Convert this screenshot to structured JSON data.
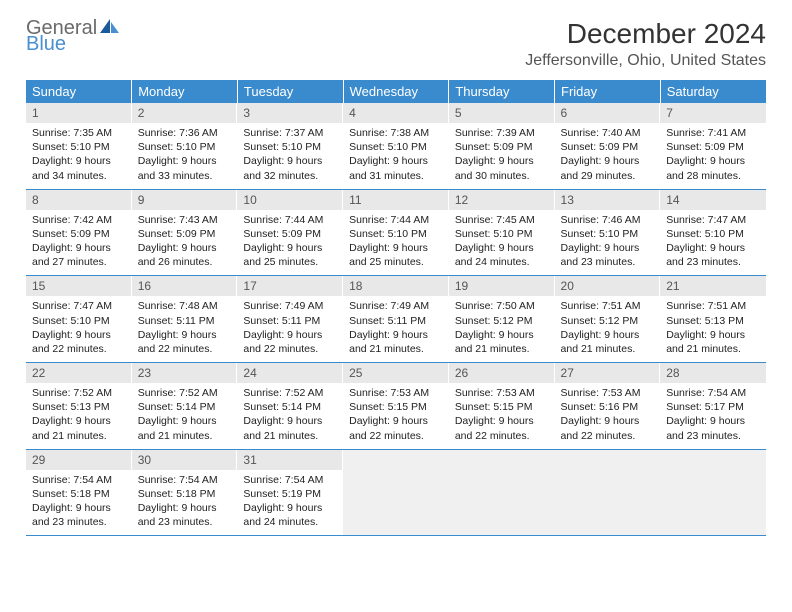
{
  "logo": {
    "general": "General",
    "blue": "Blue"
  },
  "title": "December 2024",
  "location": "Jeffersonville, Ohio, United States",
  "colors": {
    "header_bg": "#3a8bce",
    "header_text": "#ffffff",
    "daynum_bg": "#e8e8e8",
    "empty_bg": "#f0f0f0",
    "border": "#3a8bce",
    "logo_blue": "#4a8fd0",
    "logo_gray": "#6a6a6a"
  },
  "daysOfWeek": [
    "Sunday",
    "Monday",
    "Tuesday",
    "Wednesday",
    "Thursday",
    "Friday",
    "Saturday"
  ],
  "weeks": [
    [
      {
        "num": "1",
        "sunrise": "7:35 AM",
        "sunset": "5:10 PM",
        "daylight": "9 hours and 34 minutes."
      },
      {
        "num": "2",
        "sunrise": "7:36 AM",
        "sunset": "5:10 PM",
        "daylight": "9 hours and 33 minutes."
      },
      {
        "num": "3",
        "sunrise": "7:37 AM",
        "sunset": "5:10 PM",
        "daylight": "9 hours and 32 minutes."
      },
      {
        "num": "4",
        "sunrise": "7:38 AM",
        "sunset": "5:10 PM",
        "daylight": "9 hours and 31 minutes."
      },
      {
        "num": "5",
        "sunrise": "7:39 AM",
        "sunset": "5:09 PM",
        "daylight": "9 hours and 30 minutes."
      },
      {
        "num": "6",
        "sunrise": "7:40 AM",
        "sunset": "5:09 PM",
        "daylight": "9 hours and 29 minutes."
      },
      {
        "num": "7",
        "sunrise": "7:41 AM",
        "sunset": "5:09 PM",
        "daylight": "9 hours and 28 minutes."
      }
    ],
    [
      {
        "num": "8",
        "sunrise": "7:42 AM",
        "sunset": "5:09 PM",
        "daylight": "9 hours and 27 minutes."
      },
      {
        "num": "9",
        "sunrise": "7:43 AM",
        "sunset": "5:09 PM",
        "daylight": "9 hours and 26 minutes."
      },
      {
        "num": "10",
        "sunrise": "7:44 AM",
        "sunset": "5:09 PM",
        "daylight": "9 hours and 25 minutes."
      },
      {
        "num": "11",
        "sunrise": "7:44 AM",
        "sunset": "5:10 PM",
        "daylight": "9 hours and 25 minutes."
      },
      {
        "num": "12",
        "sunrise": "7:45 AM",
        "sunset": "5:10 PM",
        "daylight": "9 hours and 24 minutes."
      },
      {
        "num": "13",
        "sunrise": "7:46 AM",
        "sunset": "5:10 PM",
        "daylight": "9 hours and 23 minutes."
      },
      {
        "num": "14",
        "sunrise": "7:47 AM",
        "sunset": "5:10 PM",
        "daylight": "9 hours and 23 minutes."
      }
    ],
    [
      {
        "num": "15",
        "sunrise": "7:47 AM",
        "sunset": "5:10 PM",
        "daylight": "9 hours and 22 minutes."
      },
      {
        "num": "16",
        "sunrise": "7:48 AM",
        "sunset": "5:11 PM",
        "daylight": "9 hours and 22 minutes."
      },
      {
        "num": "17",
        "sunrise": "7:49 AM",
        "sunset": "5:11 PM",
        "daylight": "9 hours and 22 minutes."
      },
      {
        "num": "18",
        "sunrise": "7:49 AM",
        "sunset": "5:11 PM",
        "daylight": "9 hours and 21 minutes."
      },
      {
        "num": "19",
        "sunrise": "7:50 AM",
        "sunset": "5:12 PM",
        "daylight": "9 hours and 21 minutes."
      },
      {
        "num": "20",
        "sunrise": "7:51 AM",
        "sunset": "5:12 PM",
        "daylight": "9 hours and 21 minutes."
      },
      {
        "num": "21",
        "sunrise": "7:51 AM",
        "sunset": "5:13 PM",
        "daylight": "9 hours and 21 minutes."
      }
    ],
    [
      {
        "num": "22",
        "sunrise": "7:52 AM",
        "sunset": "5:13 PM",
        "daylight": "9 hours and 21 minutes."
      },
      {
        "num": "23",
        "sunrise": "7:52 AM",
        "sunset": "5:14 PM",
        "daylight": "9 hours and 21 minutes."
      },
      {
        "num": "24",
        "sunrise": "7:52 AM",
        "sunset": "5:14 PM",
        "daylight": "9 hours and 21 minutes."
      },
      {
        "num": "25",
        "sunrise": "7:53 AM",
        "sunset": "5:15 PM",
        "daylight": "9 hours and 22 minutes."
      },
      {
        "num": "26",
        "sunrise": "7:53 AM",
        "sunset": "5:15 PM",
        "daylight": "9 hours and 22 minutes."
      },
      {
        "num": "27",
        "sunrise": "7:53 AM",
        "sunset": "5:16 PM",
        "daylight": "9 hours and 22 minutes."
      },
      {
        "num": "28",
        "sunrise": "7:54 AM",
        "sunset": "5:17 PM",
        "daylight": "9 hours and 23 minutes."
      }
    ],
    [
      {
        "num": "29",
        "sunrise": "7:54 AM",
        "sunset": "5:18 PM",
        "daylight": "9 hours and 23 minutes."
      },
      {
        "num": "30",
        "sunrise": "7:54 AM",
        "sunset": "5:18 PM",
        "daylight": "9 hours and 23 minutes."
      },
      {
        "num": "31",
        "sunrise": "7:54 AM",
        "sunset": "5:19 PM",
        "daylight": "9 hours and 24 minutes."
      },
      null,
      null,
      null,
      null
    ]
  ],
  "labels": {
    "sunrise": "Sunrise:",
    "sunset": "Sunset:",
    "daylight": "Daylight:"
  }
}
